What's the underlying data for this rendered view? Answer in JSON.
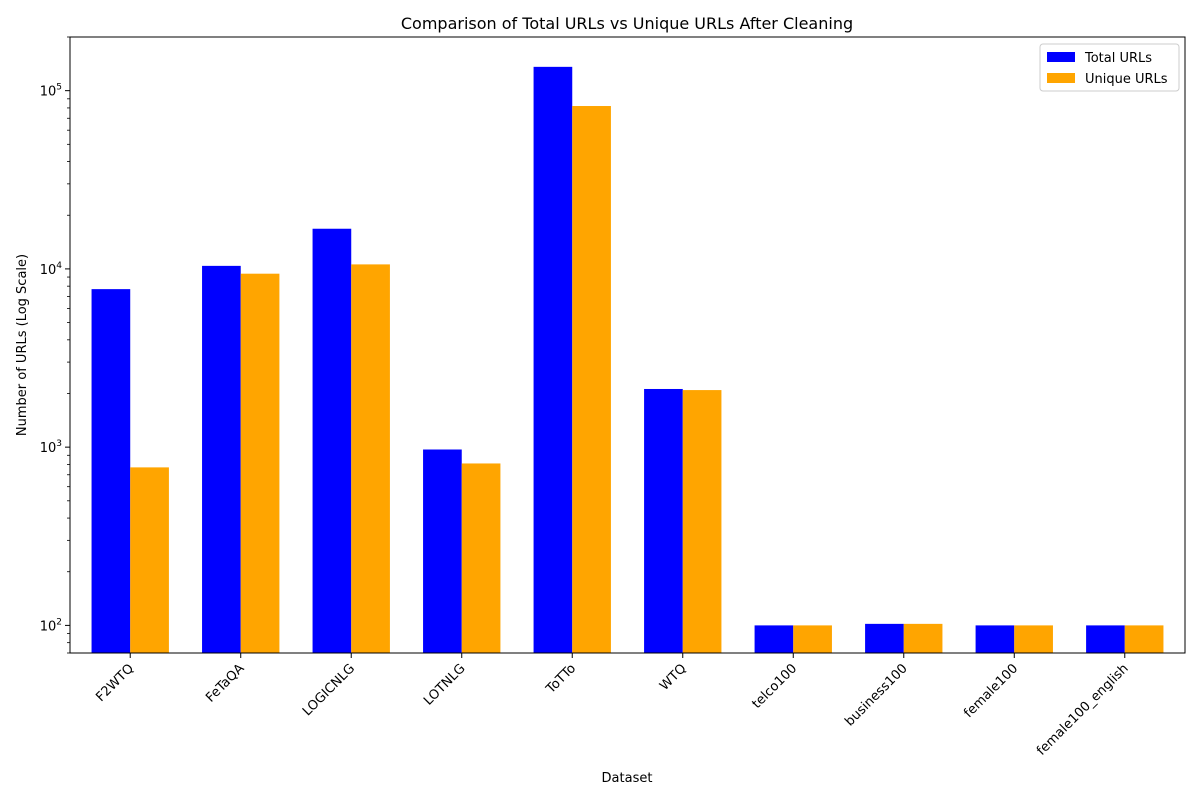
{
  "chart_data": {
    "type": "bar",
    "title": "Comparison of Total URLs vs Unique URLs After Cleaning",
    "xlabel": "Dataset",
    "ylabel": "Number of URLs (Log Scale)",
    "yscale": "log",
    "ylim": [
      70,
      200000
    ],
    "grid": false,
    "legend_position": "top-right",
    "categories": [
      "F2WTQ",
      "FeTaQA",
      "LOGICNLG",
      "LOTNLG",
      "ToTTo",
      "WTQ",
      "telco100",
      "business100",
      "female100",
      "female100_english"
    ],
    "series": [
      {
        "name": "Total URLs",
        "color": "#0000ff",
        "values": [
          7700,
          10400,
          16800,
          970,
          136000,
          2120,
          100,
          102,
          100,
          100
        ]
      },
      {
        "name": "Unique URLs",
        "color": "#ffa500",
        "values": [
          770,
          9400,
          10600,
          810,
          82000,
          2090,
          100,
          102,
          100,
          100
        ]
      }
    ],
    "y_ticks": [
      {
        "value": 100,
        "base": "10",
        "exp": "2"
      },
      {
        "value": 1000,
        "base": "10",
        "exp": "3"
      },
      {
        "value": 10000,
        "base": "10",
        "exp": "4"
      },
      {
        "value": 100000,
        "base": "10",
        "exp": "5"
      }
    ]
  }
}
